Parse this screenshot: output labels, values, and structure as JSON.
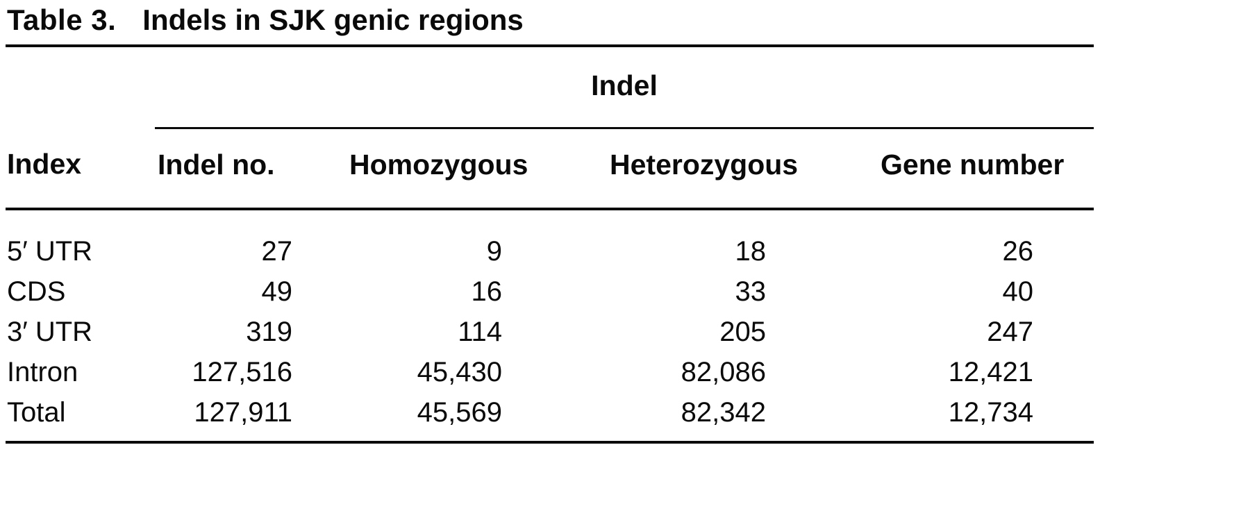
{
  "caption": {
    "label": "Table 3.",
    "title": "Indels in SJK genic regions"
  },
  "chart_data": {
    "type": "table",
    "title": "Table 3. Indels in SJK genic regions",
    "spanner": "Indel",
    "columns": [
      "Index",
      "Indel no.",
      "Homozygous",
      "Heterozygous",
      "Gene number"
    ],
    "rows": [
      [
        "5′ UTR",
        "27",
        "9",
        "18",
        "26"
      ],
      [
        "CDS",
        "49",
        "16",
        "33",
        "40"
      ],
      [
        "3′ UTR",
        "319",
        "114",
        "205",
        "247"
      ],
      [
        "Intron",
        "127,516",
        "45,430",
        "82,086",
        "12,421"
      ],
      [
        "Total",
        "127,911",
        "45,569",
        "82,342",
        "12,734"
      ]
    ]
  }
}
